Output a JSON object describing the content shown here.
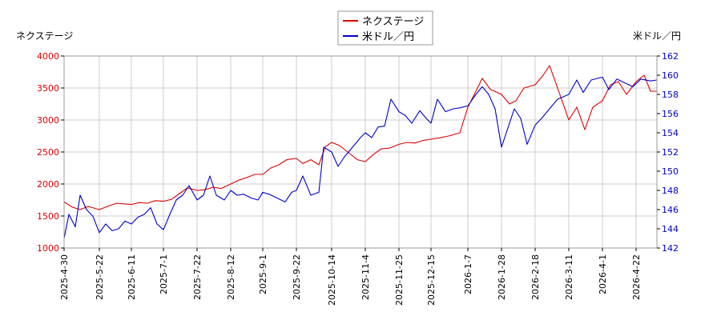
{
  "chart_data": {
    "type": "line",
    "title": "",
    "left_axis_label": "ネクステージ",
    "right_axis_label": "米ドル／円",
    "left_ylim": [
      1000,
      4000
    ],
    "left_ticks": [
      "1000",
      "1500",
      "2000",
      "2500",
      "3000",
      "3500",
      "4000"
    ],
    "right_ylim": [
      142,
      162
    ],
    "right_ticks": [
      "142",
      "144",
      "146",
      "148",
      "150",
      "152",
      "154",
      "156",
      "158",
      "160",
      "162"
    ],
    "x_range": [
      "2025-04-30",
      "2026-05-05"
    ],
    "x_tick_labels": [
      "2025-4-30",
      "2025-5-22",
      "2025-6-11",
      "2025-7-1",
      "2025-7-22",
      "2025-8-12",
      "2025-9-1",
      "2025-9-22",
      "2025-10-14",
      "2025-11-4",
      "2025-11-25",
      "2025-12-15",
      "2026-1-7",
      "2026-1-28",
      "2026-2-18",
      "2026-3-11",
      "2026-4-1",
      "2026-4-22"
    ],
    "x_tick_dates": [
      "2025-04-30",
      "2025-05-22",
      "2025-06-11",
      "2025-07-01",
      "2025-07-22",
      "2025-08-12",
      "2025-09-01",
      "2025-09-22",
      "2025-10-14",
      "2025-11-04",
      "2025-11-25",
      "2025-12-15",
      "2026-01-07",
      "2026-01-28",
      "2026-02-18",
      "2026-03-11",
      "2026-04-01",
      "2026-04-22"
    ],
    "grid": true,
    "legend_position": "top-center",
    "colors": {
      "nextage": "#dd0000",
      "usdjpy": "#0000cc",
      "grid": "#cccccc"
    },
    "series": [
      {
        "name": "ネクステージ",
        "axis": "left",
        "color": "#dd0000",
        "points": [
          [
            "2025-04-30",
            1720
          ],
          [
            "2025-05-05",
            1640
          ],
          [
            "2025-05-10",
            1600
          ],
          [
            "2025-05-15",
            1650
          ],
          [
            "2025-05-22",
            1600
          ],
          [
            "2025-05-27",
            1650
          ],
          [
            "2025-06-02",
            1700
          ],
          [
            "2025-06-06",
            1690
          ],
          [
            "2025-06-11",
            1680
          ],
          [
            "2025-06-16",
            1710
          ],
          [
            "2025-06-21",
            1700
          ],
          [
            "2025-06-26",
            1740
          ],
          [
            "2025-07-01",
            1730
          ],
          [
            "2025-07-06",
            1760
          ],
          [
            "2025-07-11",
            1850
          ],
          [
            "2025-07-16",
            1940
          ],
          [
            "2025-07-22",
            1900
          ],
          [
            "2025-07-27",
            1910
          ],
          [
            "2025-08-01",
            1950
          ],
          [
            "2025-08-06",
            1930
          ],
          [
            "2025-08-12",
            2000
          ],
          [
            "2025-08-17",
            2060
          ],
          [
            "2025-08-22",
            2100
          ],
          [
            "2025-08-27",
            2150
          ],
          [
            "2025-09-01",
            2150
          ],
          [
            "2025-09-06",
            2250
          ],
          [
            "2025-09-11",
            2300
          ],
          [
            "2025-09-16",
            2380
          ],
          [
            "2025-09-22",
            2400
          ],
          [
            "2025-09-26",
            2320
          ],
          [
            "2025-10-01",
            2380
          ],
          [
            "2025-10-06",
            2300
          ],
          [
            "2025-10-10",
            2580
          ],
          [
            "2025-10-14",
            2650
          ],
          [
            "2025-10-19",
            2600
          ],
          [
            "2025-10-24",
            2500
          ],
          [
            "2025-10-30",
            2380
          ],
          [
            "2025-11-04",
            2350
          ],
          [
            "2025-11-09",
            2460
          ],
          [
            "2025-11-14",
            2550
          ],
          [
            "2025-11-19",
            2560
          ],
          [
            "2025-11-25",
            2620
          ],
          [
            "2025-11-30",
            2650
          ],
          [
            "2025-12-05",
            2640
          ],
          [
            "2025-12-10",
            2680
          ],
          [
            "2025-12-15",
            2700
          ],
          [
            "2025-12-20",
            2720
          ],
          [
            "2025-12-26",
            2750
          ],
          [
            "2026-01-02",
            2800
          ],
          [
            "2026-01-07",
            3200
          ],
          [
            "2026-01-12",
            3450
          ],
          [
            "2026-01-16",
            3650
          ],
          [
            "2026-01-21",
            3480
          ],
          [
            "2026-01-28",
            3400
          ],
          [
            "2026-02-02",
            3250
          ],
          [
            "2026-02-06",
            3300
          ],
          [
            "2026-02-11",
            3500
          ],
          [
            "2026-02-18",
            3550
          ],
          [
            "2026-02-23",
            3700
          ],
          [
            "2026-02-27",
            3850
          ],
          [
            "2026-03-04",
            3500
          ],
          [
            "2026-03-11",
            3000
          ],
          [
            "2026-03-16",
            3200
          ],
          [
            "2026-03-21",
            2850
          ],
          [
            "2026-03-26",
            3200
          ],
          [
            "2026-04-01",
            3300
          ],
          [
            "2026-04-06",
            3550
          ],
          [
            "2026-04-11",
            3600
          ],
          [
            "2026-04-16",
            3400
          ],
          [
            "2026-04-22",
            3600
          ],
          [
            "2026-04-27",
            3700
          ],
          [
            "2026-05-01",
            3450
          ],
          [
            "2026-05-05",
            3450
          ]
        ]
      },
      {
        "name": "米ドル／円",
        "axis": "right",
        "color": "#0000cc",
        "points": [
          [
            "2025-04-30",
            143.0
          ],
          [
            "2025-05-03",
            145.5
          ],
          [
            "2025-05-07",
            144.2
          ],
          [
            "2025-05-10",
            147.5
          ],
          [
            "2025-05-14",
            146.0
          ],
          [
            "2025-05-18",
            145.3
          ],
          [
            "2025-05-22",
            143.6
          ],
          [
            "2025-05-26",
            144.5
          ],
          [
            "2025-05-30",
            143.8
          ],
          [
            "2025-06-03",
            144.0
          ],
          [
            "2025-06-07",
            144.8
          ],
          [
            "2025-06-11",
            144.5
          ],
          [
            "2025-06-15",
            145.2
          ],
          [
            "2025-06-19",
            145.5
          ],
          [
            "2025-06-23",
            146.2
          ],
          [
            "2025-06-27",
            144.5
          ],
          [
            "2025-07-01",
            143.9
          ],
          [
            "2025-07-05",
            145.5
          ],
          [
            "2025-07-09",
            147.0
          ],
          [
            "2025-07-13",
            147.5
          ],
          [
            "2025-07-17",
            148.5
          ],
          [
            "2025-07-22",
            147.0
          ],
          [
            "2025-07-26",
            147.5
          ],
          [
            "2025-07-30",
            149.5
          ],
          [
            "2025-08-03",
            147.5
          ],
          [
            "2025-08-08",
            147.0
          ],
          [
            "2025-08-12",
            148.0
          ],
          [
            "2025-08-16",
            147.5
          ],
          [
            "2025-08-20",
            147.6
          ],
          [
            "2025-08-25",
            147.2
          ],
          [
            "2025-08-29",
            147.0
          ],
          [
            "2025-09-01",
            147.8
          ],
          [
            "2025-09-05",
            147.6
          ],
          [
            "2025-09-10",
            147.2
          ],
          [
            "2025-09-15",
            146.8
          ],
          [
            "2025-09-19",
            147.8
          ],
          [
            "2025-09-22",
            148.0
          ],
          [
            "2025-09-26",
            149.5
          ],
          [
            "2025-10-01",
            147.5
          ],
          [
            "2025-10-06",
            147.8
          ],
          [
            "2025-10-09",
            152.5
          ],
          [
            "2025-10-14",
            152.0
          ],
          [
            "2025-10-18",
            150.5
          ],
          [
            "2025-10-22",
            151.5
          ],
          [
            "2025-10-27",
            152.5
          ],
          [
            "2025-11-01",
            153.5
          ],
          [
            "2025-11-04",
            154.0
          ],
          [
            "2025-11-08",
            153.5
          ],
          [
            "2025-11-12",
            154.6
          ],
          [
            "2025-11-16",
            154.7
          ],
          [
            "2025-11-20",
            157.5
          ],
          [
            "2025-11-25",
            156.2
          ],
          [
            "2025-11-29",
            155.8
          ],
          [
            "2025-12-03",
            155.0
          ],
          [
            "2025-12-08",
            156.3
          ],
          [
            "2025-12-12",
            155.5
          ],
          [
            "2025-12-15",
            155.0
          ],
          [
            "2025-12-19",
            157.5
          ],
          [
            "2025-12-24",
            156.2
          ],
          [
            "2025-12-29",
            156.5
          ],
          [
            "2026-01-02",
            156.6
          ],
          [
            "2026-01-07",
            156.8
          ],
          [
            "2026-01-12",
            158.0
          ],
          [
            "2026-01-16",
            158.8
          ],
          [
            "2026-01-20",
            158.0
          ],
          [
            "2026-01-24",
            156.5
          ],
          [
            "2026-01-28",
            152.5
          ],
          [
            "2026-02-01",
            154.5
          ],
          [
            "2026-02-05",
            156.5
          ],
          [
            "2026-02-09",
            155.5
          ],
          [
            "2026-02-13",
            152.8
          ],
          [
            "2026-02-18",
            154.8
          ],
          [
            "2026-02-22",
            155.5
          ],
          [
            "2026-02-27",
            156.5
          ],
          [
            "2026-03-04",
            157.5
          ],
          [
            "2026-03-11",
            158.0
          ],
          [
            "2026-03-16",
            159.5
          ],
          [
            "2026-03-20",
            158.2
          ],
          [
            "2026-03-25",
            159.5
          ],
          [
            "2026-04-01",
            159.8
          ],
          [
            "2026-04-05",
            158.5
          ],
          [
            "2026-04-10",
            159.6
          ],
          [
            "2026-04-15",
            159.2
          ],
          [
            "2026-04-20",
            158.8
          ],
          [
            "2026-04-25",
            159.6
          ],
          [
            "2026-05-01",
            159.4
          ],
          [
            "2026-05-05",
            159.5
          ]
        ]
      }
    ]
  }
}
